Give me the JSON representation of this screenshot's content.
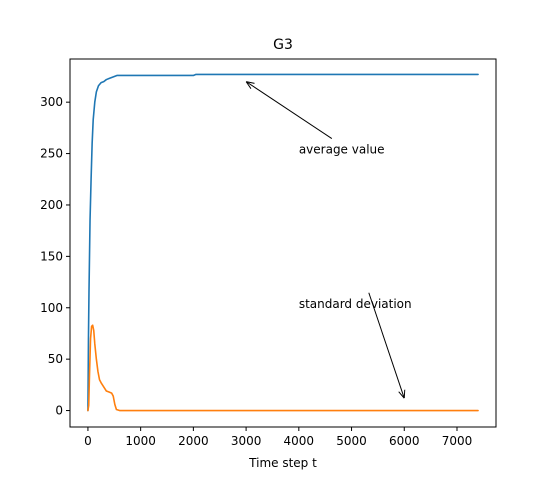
{
  "chart_data": {
    "type": "line",
    "title": "G3",
    "xlabel": "Time step t",
    "ylabel": "",
    "xlim": [
      -340,
      7740
    ],
    "ylim": [
      -16,
      342
    ],
    "xticks": [
      0,
      1000,
      2000,
      3000,
      4000,
      5000,
      6000,
      7000
    ],
    "xtick_labels": [
      "0",
      "1000",
      "2000",
      "3000",
      "4000",
      "5000",
      "6000",
      "7000"
    ],
    "yticks": [
      0,
      50,
      100,
      150,
      200,
      250,
      300
    ],
    "ytick_labels": [
      "0",
      "50",
      "100",
      "150",
      "200",
      "250",
      "300"
    ],
    "grid": false,
    "legend": null,
    "series": [
      {
        "color": "#1f77b4",
        "points": [
          [
            0,
            0
          ],
          [
            10,
            70
          ],
          [
            20,
            115
          ],
          [
            40,
            185
          ],
          [
            60,
            225
          ],
          [
            80,
            260
          ],
          [
            100,
            283
          ],
          [
            130,
            300
          ],
          [
            160,
            310
          ],
          [
            200,
            316
          ],
          [
            250,
            319
          ],
          [
            300,
            320
          ],
          [
            350,
            322
          ],
          [
            400,
            323
          ],
          [
            450,
            324
          ],
          [
            500,
            325
          ],
          [
            550,
            326
          ],
          [
            700,
            326
          ],
          [
            1000,
            326
          ],
          [
            1500,
            326
          ],
          [
            2000,
            326
          ],
          [
            2050,
            327
          ],
          [
            3000,
            327
          ],
          [
            4000,
            327
          ],
          [
            5000,
            327
          ],
          [
            6000,
            327
          ],
          [
            7000,
            327
          ],
          [
            7400,
            327
          ]
        ]
      },
      {
        "color": "#ff7f0e",
        "points": [
          [
            0,
            0
          ],
          [
            15,
            5
          ],
          [
            30,
            35
          ],
          [
            50,
            70
          ],
          [
            70,
            82
          ],
          [
            90,
            83
          ],
          [
            110,
            78
          ],
          [
            130,
            65
          ],
          [
            160,
            50
          ],
          [
            190,
            38
          ],
          [
            220,
            30
          ],
          [
            250,
            27
          ],
          [
            300,
            23
          ],
          [
            350,
            19
          ],
          [
            400,
            18
          ],
          [
            450,
            17
          ],
          [
            480,
            14
          ],
          [
            510,
            6
          ],
          [
            540,
            1
          ],
          [
            600,
            0
          ],
          [
            1000,
            0
          ],
          [
            2000,
            0
          ],
          [
            3000,
            0
          ],
          [
            4000,
            0
          ],
          [
            5000,
            0
          ],
          [
            6000,
            0
          ],
          [
            7000,
            0
          ],
          [
            7400,
            0
          ]
        ]
      }
    ],
    "annotations": [
      {
        "text": "average value",
        "text_at": [
          4000,
          250
        ],
        "arrow_to": [
          3000,
          320
        ]
      },
      {
        "text": "standard deviation",
        "text_at": [
          4000,
          100
        ],
        "arrow_to": [
          6000,
          12
        ]
      }
    ]
  }
}
